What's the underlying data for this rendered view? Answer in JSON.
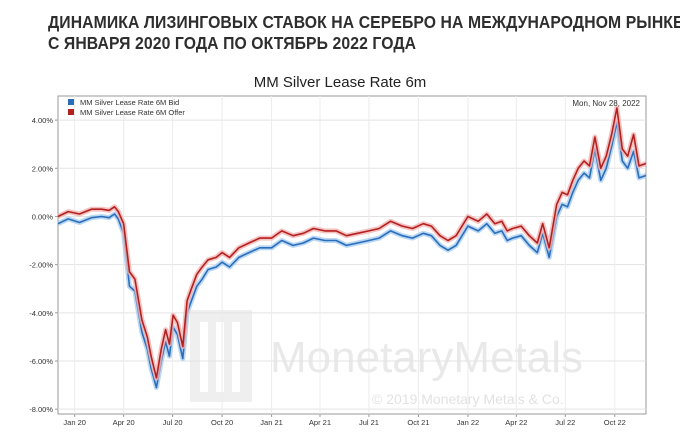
{
  "headline": {
    "line1": "ДИНАМИКА ЛИЗИНГОВЫХ СТАВОК НА СЕРЕБРО НА МЕЖДУНАРОДНОМ РЫНКЕ",
    "line2": "С ЯНВАРЯ 2020 ГОДА ПО ОКТЯБРЬ 2022 ГОДА"
  },
  "watermark": {
    "brand": "MonetaryMetals",
    "copyright": "© 2019 Monetary Metals & Co."
  },
  "colors": {
    "bid": "#2a6ebb",
    "offer": "#b3211f",
    "bid_glow": "#a9cdf0",
    "offer_glow": "#f2b3b3"
  },
  "chart_data": {
    "type": "line",
    "title": "MM Silver Lease Rate 6m",
    "date_label": "Mon, Nov 28, 2022",
    "xlabel": "",
    "ylabel": "",
    "legend_position": "top-left",
    "grid": true,
    "xlim": [
      "2019-12-01",
      "2022-11-28"
    ],
    "ylim": [
      -8.2,
      5.0
    ],
    "x_ticks": [
      "2020-01-01",
      "2020-04-01",
      "2020-07-01",
      "2020-10-01",
      "2021-01-01",
      "2021-04-01",
      "2021-07-01",
      "2021-10-01",
      "2022-01-01",
      "2022-04-01",
      "2022-07-01",
      "2022-10-01"
    ],
    "x_tick_labels": [
      "Jan 20",
      "Apr 20",
      "Jul 20",
      "Oct 20",
      "Jan 21",
      "Apr 21",
      "Jul 21",
      "Oct 21",
      "Jan 22",
      "Apr 22",
      "Jul 22",
      "Oct 22"
    ],
    "y_ticks": [
      4,
      2,
      0,
      -2,
      -4,
      -6,
      -8
    ],
    "y_tick_labels": [
      "4.00%",
      "2.00%",
      "0.00%",
      "-2.00%",
      "-4.00%",
      "-6.00%",
      "-8.00%"
    ],
    "series": [
      {
        "name": "MM Silver Lease Rate 6M Bid",
        "x": [
          "2019-12-01",
          "2019-12-20",
          "2020-01-10",
          "2020-02-01",
          "2020-02-20",
          "2020-03-05",
          "2020-03-15",
          "2020-03-22",
          "2020-04-01",
          "2020-04-12",
          "2020-04-22",
          "2020-05-05",
          "2020-05-15",
          "2020-05-22",
          "2020-06-01",
          "2020-06-10",
          "2020-06-18",
          "2020-06-25",
          "2020-07-02",
          "2020-07-10",
          "2020-07-20",
          "2020-07-28",
          "2020-08-05",
          "2020-08-15",
          "2020-08-25",
          "2020-09-05",
          "2020-09-20",
          "2020-10-01",
          "2020-10-15",
          "2020-11-01",
          "2020-11-20",
          "2020-12-10",
          "2021-01-01",
          "2021-01-20",
          "2021-02-10",
          "2021-03-01",
          "2021-03-20",
          "2021-04-10",
          "2021-05-01",
          "2021-05-20",
          "2021-06-10",
          "2021-07-01",
          "2021-07-20",
          "2021-08-10",
          "2021-09-01",
          "2021-09-20",
          "2021-10-10",
          "2021-10-25",
          "2021-11-10",
          "2021-11-25",
          "2021-12-10",
          "2022-01-01",
          "2022-01-20",
          "2022-02-05",
          "2022-02-20",
          "2022-03-05",
          "2022-03-15",
          "2022-03-25",
          "2022-04-10",
          "2022-04-25",
          "2022-05-10",
          "2022-05-20",
          "2022-06-01",
          "2022-06-15",
          "2022-06-25",
          "2022-07-05",
          "2022-07-15",
          "2022-07-25",
          "2022-08-05",
          "2022-08-15",
          "2022-08-25",
          "2022-09-05",
          "2022-09-15",
          "2022-09-25",
          "2022-10-05",
          "2022-10-15",
          "2022-10-25",
          "2022-11-05",
          "2022-11-15",
          "2022-11-28"
        ],
        "values": [
          -0.3,
          -0.1,
          -0.25,
          -0.05,
          0.0,
          -0.05,
          0.1,
          -0.1,
          -0.7,
          -2.9,
          -3.1,
          -4.8,
          -5.5,
          -6.3,
          -7.1,
          -6.0,
          -5.2,
          -5.8,
          -4.6,
          -4.9,
          -5.9,
          -4.0,
          -3.5,
          -2.9,
          -2.6,
          -2.2,
          -2.1,
          -1.9,
          -2.1,
          -1.7,
          -1.5,
          -1.3,
          -1.3,
          -1.0,
          -1.2,
          -1.1,
          -0.9,
          -1.0,
          -1.0,
          -1.2,
          -1.1,
          -1.0,
          -0.9,
          -0.6,
          -0.8,
          -0.9,
          -0.7,
          -0.8,
          -1.2,
          -1.4,
          -1.2,
          -0.4,
          -0.6,
          -0.3,
          -0.7,
          -0.6,
          -1.0,
          -0.9,
          -0.8,
          -1.2,
          -1.5,
          -0.7,
          -1.7,
          0.0,
          0.5,
          0.4,
          1.0,
          1.5,
          1.8,
          1.6,
          2.8,
          1.5,
          2.0,
          2.9,
          3.9,
          2.3,
          2.0,
          2.7,
          1.6,
          1.7
        ]
      },
      {
        "name": "MM Silver Lease Rate 6M Offer",
        "x": [
          "2019-12-01",
          "2019-12-20",
          "2020-01-10",
          "2020-02-01",
          "2020-02-20",
          "2020-03-05",
          "2020-03-15",
          "2020-03-22",
          "2020-04-01",
          "2020-04-12",
          "2020-04-22",
          "2020-05-05",
          "2020-05-15",
          "2020-05-22",
          "2020-06-01",
          "2020-06-10",
          "2020-06-18",
          "2020-06-25",
          "2020-07-02",
          "2020-07-10",
          "2020-07-20",
          "2020-07-28",
          "2020-08-05",
          "2020-08-15",
          "2020-08-25",
          "2020-09-05",
          "2020-09-20",
          "2020-10-01",
          "2020-10-15",
          "2020-11-01",
          "2020-11-20",
          "2020-12-10",
          "2021-01-01",
          "2021-01-20",
          "2021-02-10",
          "2021-03-01",
          "2021-03-20",
          "2021-04-10",
          "2021-05-01",
          "2021-05-20",
          "2021-06-10",
          "2021-07-01",
          "2021-07-20",
          "2021-08-10",
          "2021-09-01",
          "2021-09-20",
          "2021-10-10",
          "2021-10-25",
          "2021-11-10",
          "2021-11-25",
          "2021-12-10",
          "2022-01-01",
          "2022-01-20",
          "2022-02-05",
          "2022-02-20",
          "2022-03-05",
          "2022-03-15",
          "2022-03-25",
          "2022-04-10",
          "2022-04-25",
          "2022-05-10",
          "2022-05-20",
          "2022-06-01",
          "2022-06-15",
          "2022-06-25",
          "2022-07-05",
          "2022-07-15",
          "2022-07-25",
          "2022-08-05",
          "2022-08-15",
          "2022-08-25",
          "2022-09-05",
          "2022-09-15",
          "2022-09-25",
          "2022-10-05",
          "2022-10-15",
          "2022-10-25",
          "2022-11-05",
          "2022-11-15",
          "2022-11-28"
        ],
        "values": [
          0.0,
          0.2,
          0.1,
          0.3,
          0.3,
          0.25,
          0.4,
          0.2,
          -0.3,
          -2.3,
          -2.6,
          -4.3,
          -5.0,
          -5.8,
          -6.7,
          -5.5,
          -4.7,
          -5.3,
          -4.1,
          -4.4,
          -5.4,
          -3.5,
          -3.0,
          -2.4,
          -2.1,
          -1.8,
          -1.7,
          -1.5,
          -1.7,
          -1.3,
          -1.1,
          -0.9,
          -0.9,
          -0.6,
          -0.8,
          -0.7,
          -0.5,
          -0.6,
          -0.6,
          -0.8,
          -0.7,
          -0.6,
          -0.5,
          -0.2,
          -0.4,
          -0.5,
          -0.3,
          -0.4,
          -0.8,
          -1.0,
          -0.8,
          0.0,
          -0.2,
          0.1,
          -0.3,
          -0.2,
          -0.6,
          -0.5,
          -0.4,
          -0.8,
          -1.1,
          -0.3,
          -1.3,
          0.5,
          1.0,
          0.9,
          1.5,
          2.0,
          2.3,
          2.1,
          3.3,
          2.0,
          2.5,
          3.4,
          4.5,
          2.8,
          2.5,
          3.4,
          2.1,
          2.2
        ]
      }
    ]
  }
}
